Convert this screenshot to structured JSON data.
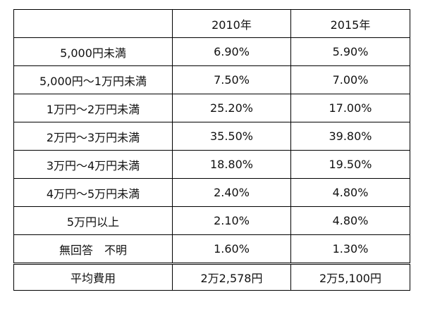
{
  "table": {
    "header": [
      "2010年",
      "2015年"
    ],
    "rows": [
      [
        "5,000円未満",
        "6.90%",
        "5.90%"
      ],
      [
        "5,000円～1万円未満",
        "7.50%",
        "7.00%"
      ],
      [
        "1万円～2万円未満",
        "25.20%",
        "17.00%"
      ],
      [
        "2万円～3万円未満",
        "35.50%",
        "39.80%"
      ],
      [
        "3万円～4万円未満",
        "18.80%",
        "19.50%"
      ],
      [
        "4万円～5万円未満",
        "2.40%",
        "4.80%"
      ],
      [
        "5万円以上",
        "2.10%",
        "4.80%"
      ],
      [
        "無回答　不明",
        "1.60%",
        "1.30%"
      ]
    ],
    "footer": [
      "平均費用",
      "2万2,578円",
      "2万5,100円"
    ]
  }
}
